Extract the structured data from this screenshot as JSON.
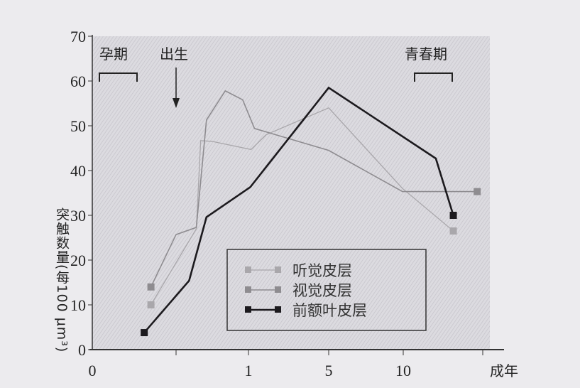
{
  "chart_data": {
    "type": "line",
    "title": "",
    "xlabel": "",
    "ylabel": "突触数量(每100 μm³)",
    "ylim": [
      0,
      70
    ],
    "yticks": [
      0,
      10,
      20,
      30,
      40,
      50,
      60,
      70
    ],
    "xticks": [
      {
        "value": 0,
        "label": "0"
      },
      {
        "value": 0.5,
        "label": ""
      },
      {
        "value": 1,
        "label": "1"
      },
      {
        "value": 5,
        "label": "5"
      },
      {
        "value": 10,
        "label": "10"
      },
      {
        "value": 20,
        "label": "成年"
      }
    ],
    "grid": false,
    "legend_position": "bottom-center",
    "annotations": {
      "pregnancy": "孕期",
      "birth": "出生",
      "puberty": "青春期"
    },
    "series": [
      {
        "name": "听觉皮层",
        "color": "#a9a7ab",
        "marker": "light-square",
        "points": [
          [
            0.35,
            10
          ],
          [
            0.64,
            27
          ],
          [
            0.67,
            46.7
          ],
          [
            0.75,
            46.5
          ],
          [
            1.13,
            44.7
          ],
          [
            1.88,
            48
          ],
          [
            5,
            54
          ],
          [
            9.95,
            36
          ],
          [
            16.3,
            26.5
          ]
        ]
      },
      {
        "name": "视觉皮层",
        "color": "#8e8c90",
        "marker": "gray-square",
        "points": [
          [
            0.35,
            14
          ],
          [
            0.5,
            25.7
          ],
          [
            0.64,
            27.3
          ],
          [
            0.71,
            51.3
          ],
          [
            0.84,
            57.8
          ],
          [
            0.96,
            55.8
          ],
          [
            1.3,
            49.4
          ],
          [
            5,
            44.5
          ],
          [
            9.95,
            35.3
          ],
          [
            19.3,
            35.3
          ]
        ]
      },
      {
        "name": "前额叶皮层",
        "color": "#1c1a1e",
        "marker": "black-square",
        "points": [
          [
            0.31,
            3.8
          ],
          [
            0.59,
            15.4
          ],
          [
            0.71,
            29.6
          ],
          [
            1.09,
            36.3
          ],
          [
            5,
            58.5
          ],
          [
            14.1,
            42.7
          ],
          [
            16.3,
            30
          ]
        ]
      }
    ]
  }
}
